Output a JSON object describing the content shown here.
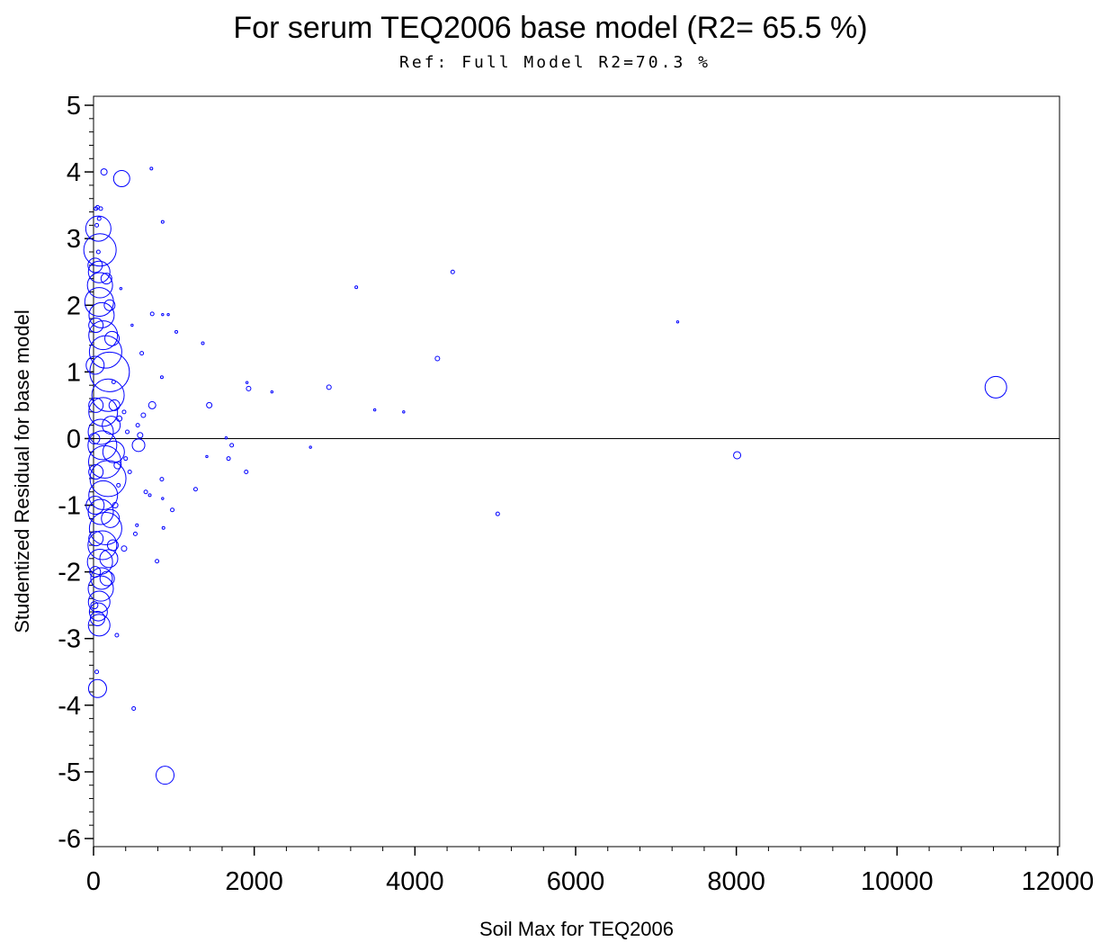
{
  "chart_data": {
    "type": "scatter",
    "title": "For serum TEQ2006 base model (R2= 65.5 %)",
    "subtitle": "Ref: Full Model R2=70.3 %",
    "xlabel": "Soil Max for TEQ2006",
    "ylabel": "Studentized Residual for base model",
    "xlim": [
      0,
      12000
    ],
    "ylim": [
      -6,
      5
    ],
    "xticks": [
      0,
      2000,
      4000,
      6000,
      8000,
      10000,
      12000
    ],
    "yticks": [
      5,
      4,
      3,
      2,
      1,
      0,
      -1,
      -2,
      -3,
      -4,
      -5,
      -6
    ],
    "reference_line_y": 0,
    "marker": "bubble-circle-open",
    "marker_color": "#0000ff",
    "grid": false,
    "legend": "none",
    "points": [
      {
        "x": 11230,
        "y": 0.77,
        "size": 12
      },
      {
        "x": 8010,
        "y": -0.25,
        "size": 4
      },
      {
        "x": 7270,
        "y": 1.75,
        "size": 1.2
      },
      {
        "x": 5030,
        "y": -1.13,
        "size": 2
      },
      {
        "x": 4470,
        "y": 2.5,
        "size": 2
      },
      {
        "x": 4280,
        "y": 1.2,
        "size": 2.5
      },
      {
        "x": 3860,
        "y": 0.4,
        "size": 1.2
      },
      {
        "x": 3500,
        "y": 0.43,
        "size": 1.2
      },
      {
        "x": 3270,
        "y": 2.27,
        "size": 1.5
      },
      {
        "x": 2930,
        "y": 0.77,
        "size": 2.5
      },
      {
        "x": 2700,
        "y": -0.13,
        "size": 1.2
      },
      {
        "x": 2220,
        "y": 0.7,
        "size": 1.2
      },
      {
        "x": 1930,
        "y": 0.75,
        "size": 2.5
      },
      {
        "x": 1910,
        "y": 0.84,
        "size": 1.2
      },
      {
        "x": 1900,
        "y": -0.5,
        "size": 2
      },
      {
        "x": 1720,
        "y": -0.1,
        "size": 2
      },
      {
        "x": 1680,
        "y": -0.3,
        "size": 2
      },
      {
        "x": 1650,
        "y": 0.01,
        "size": 1.2
      },
      {
        "x": 1440,
        "y": 0.5,
        "size": 3
      },
      {
        "x": 1410,
        "y": -0.27,
        "size": 1.2
      },
      {
        "x": 1360,
        "y": 1.43,
        "size": 1.5
      },
      {
        "x": 1270,
        "y": -0.76,
        "size": 2
      },
      {
        "x": 1030,
        "y": 1.6,
        "size": 1.5
      },
      {
        "x": 980,
        "y": -1.07,
        "size": 2
      },
      {
        "x": 930,
        "y": 1.86,
        "size": 1.2
      },
      {
        "x": 860,
        "y": 1.86,
        "size": 1.2
      },
      {
        "x": 860,
        "y": 3.25,
        "size": 1.5
      },
      {
        "x": 850,
        "y": -0.61,
        "size": 2
      },
      {
        "x": 860,
        "y": -0.9,
        "size": 1.2
      },
      {
        "x": 870,
        "y": -1.34,
        "size": 1.5
      },
      {
        "x": 850,
        "y": 0.92,
        "size": 1.5
      },
      {
        "x": 890,
        "y": -5.05,
        "size": 10
      },
      {
        "x": 790,
        "y": -1.84,
        "size": 2
      },
      {
        "x": 730,
        "y": 1.87,
        "size": 2
      },
      {
        "x": 720,
        "y": 4.05,
        "size": 1.5
      },
      {
        "x": 730,
        "y": 0.5,
        "size": 4
      },
      {
        "x": 700,
        "y": -0.85,
        "size": 1.5
      },
      {
        "x": 650,
        "y": -0.8,
        "size": 2
      },
      {
        "x": 620,
        "y": 0.35,
        "size": 2.5
      },
      {
        "x": 600,
        "y": 1.28,
        "size": 2
      },
      {
        "x": 550,
        "y": 0.2,
        "size": 2
      },
      {
        "x": 540,
        "y": -1.3,
        "size": 1.5
      },
      {
        "x": 520,
        "y": -1.43,
        "size": 2
      },
      {
        "x": 500,
        "y": -4.05,
        "size": 2
      },
      {
        "x": 480,
        "y": 1.7,
        "size": 1.2
      },
      {
        "x": 560,
        "y": -0.1,
        "size": 7
      },
      {
        "x": 580,
        "y": 0.05,
        "size": 3
      },
      {
        "x": 450,
        "y": -0.5,
        "size": 2
      },
      {
        "x": 420,
        "y": 0.1,
        "size": 2
      },
      {
        "x": 400,
        "y": -0.3,
        "size": 2
      },
      {
        "x": 380,
        "y": 0.4,
        "size": 2
      },
      {
        "x": 380,
        "y": -1.65,
        "size": 3
      },
      {
        "x": 340,
        "y": 2.25,
        "size": 1.2
      },
      {
        "x": 350,
        "y": 3.9,
        "size": 9
      },
      {
        "x": 290,
        "y": -2.95,
        "size": 2
      },
      {
        "x": 250,
        "y": 0.85,
        "size": 2
      },
      {
        "x": 130,
        "y": 4.0,
        "size": 3.5
      },
      {
        "x": 90,
        "y": 3.45,
        "size": 2
      },
      {
        "x": 50,
        "y": 3.47,
        "size": 2
      },
      {
        "x": 70,
        "y": 3.3,
        "size": 2
      },
      {
        "x": 60,
        "y": 3.15,
        "size": 14
      },
      {
        "x": 80,
        "y": 2.83,
        "size": 18
      },
      {
        "x": 60,
        "y": 2.8,
        "size": 2
      },
      {
        "x": 70,
        "y": 2.5,
        "size": 12
      },
      {
        "x": 80,
        "y": 2.3,
        "size": 14
      },
      {
        "x": 70,
        "y": 2.05,
        "size": 16
      },
      {
        "x": 100,
        "y": 1.85,
        "size": 14
      },
      {
        "x": 120,
        "y": 1.55,
        "size": 16
      },
      {
        "x": 150,
        "y": 1.3,
        "size": 18
      },
      {
        "x": 200,
        "y": 1.0,
        "size": 22
      },
      {
        "x": 180,
        "y": 0.65,
        "size": 18
      },
      {
        "x": 120,
        "y": 0.4,
        "size": 16
      },
      {
        "x": 90,
        "y": 0.1,
        "size": 14
      },
      {
        "x": 110,
        "y": -0.1,
        "size": 16
      },
      {
        "x": 140,
        "y": -0.35,
        "size": 18
      },
      {
        "x": 180,
        "y": -0.6,
        "size": 20
      },
      {
        "x": 120,
        "y": -0.85,
        "size": 16
      },
      {
        "x": 90,
        "y": -1.1,
        "size": 14
      },
      {
        "x": 150,
        "y": -1.35,
        "size": 18
      },
      {
        "x": 110,
        "y": -1.6,
        "size": 16
      },
      {
        "x": 80,
        "y": -1.85,
        "size": 14
      },
      {
        "x": 100,
        "y": -2.1,
        "size": 12
      },
      {
        "x": 90,
        "y": -2.25,
        "size": 14
      },
      {
        "x": 70,
        "y": -2.45,
        "size": 12
      },
      {
        "x": 60,
        "y": -2.6,
        "size": 10
      },
      {
        "x": 50,
        "y": -2.7,
        "size": 8
      },
      {
        "x": 70,
        "y": -2.8,
        "size": 12
      },
      {
        "x": 40,
        "y": -3.5,
        "size": 2
      },
      {
        "x": 50,
        "y": -3.75,
        "size": 10
      },
      {
        "x": 30,
        "y": 3.45,
        "size": 2
      },
      {
        "x": 40,
        "y": 3.2,
        "size": 2
      },
      {
        "x": 20,
        "y": 2.6,
        "size": 8
      },
      {
        "x": 30,
        "y": 1.7,
        "size": 8
      },
      {
        "x": 20,
        "y": 1.1,
        "size": 10
      },
      {
        "x": 30,
        "y": 0.5,
        "size": 8
      },
      {
        "x": 10,
        "y": 0.0,
        "size": 6
      },
      {
        "x": 30,
        "y": -0.5,
        "size": 8
      },
      {
        "x": 20,
        "y": -1.0,
        "size": 10
      },
      {
        "x": 30,
        "y": -1.5,
        "size": 8
      },
      {
        "x": 20,
        "y": -2.0,
        "size": 6
      },
      {
        "x": 10,
        "y": -2.5,
        "size": 4
      },
      {
        "x": 220,
        "y": 0.2,
        "size": 10
      },
      {
        "x": 250,
        "y": -0.2,
        "size": 12
      },
      {
        "x": 230,
        "y": 1.5,
        "size": 8
      },
      {
        "x": 210,
        "y": -1.2,
        "size": 10
      },
      {
        "x": 260,
        "y": 0.5,
        "size": 6
      },
      {
        "x": 300,
        "y": -0.4,
        "size": 4
      },
      {
        "x": 270,
        "y": -1.0,
        "size": 3
      },
      {
        "x": 320,
        "y": 0.3,
        "size": 3
      },
      {
        "x": 310,
        "y": -0.7,
        "size": 2
      },
      {
        "x": 240,
        "y": -1.6,
        "size": 6
      },
      {
        "x": 200,
        "y": 2.0,
        "size": 6
      },
      {
        "x": 170,
        "y": -2.1,
        "size": 8
      },
      {
        "x": 160,
        "y": 2.4,
        "size": 6
      },
      {
        "x": 190,
        "y": -1.8,
        "size": 10
      }
    ]
  }
}
